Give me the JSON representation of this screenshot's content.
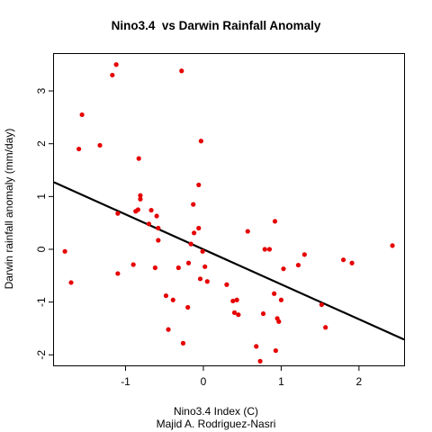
{
  "chart_data": {
    "type": "scatter",
    "title": "Nino3.4  vs Darwin Rainfall Anomaly",
    "xlabel": "Nino3.4 Index (C)",
    "ylabel": "Darwin rainfall anomaly (mm/day)",
    "credit": "Majid A. Rodriguez-Nasri",
    "xlim": [
      -1.92,
      2.58
    ],
    "ylim": [
      -2.2,
      3.7
    ],
    "xticks": [
      -1,
      0,
      1,
      2
    ],
    "yticks": [
      -2,
      -1,
      0,
      1,
      2,
      3
    ],
    "point_color": "#e60000",
    "line_color": "#000000",
    "regression_line": {
      "x": [
        -1.92,
        2.58
      ],
      "y": [
        1.27,
        -1.71
      ]
    },
    "points": [
      {
        "x": -1.78,
        "y": -0.04
      },
      {
        "x": -1.7,
        "y": -0.63
      },
      {
        "x": -1.6,
        "y": 1.9
      },
      {
        "x": -1.56,
        "y": 2.55
      },
      {
        "x": -1.33,
        "y": 1.97
      },
      {
        "x": -1.17,
        "y": 3.3
      },
      {
        "x": -1.12,
        "y": 3.5
      },
      {
        "x": -1.1,
        "y": 0.68
      },
      {
        "x": -1.1,
        "y": -0.46
      },
      {
        "x": -0.9,
        "y": -0.29
      },
      {
        "x": -0.87,
        "y": 0.72
      },
      {
        "x": -0.84,
        "y": 0.75
      },
      {
        "x": -0.83,
        "y": 1.72
      },
      {
        "x": -0.81,
        "y": 1.02
      },
      {
        "x": -0.81,
        "y": 0.95
      },
      {
        "x": -0.7,
        "y": 0.48
      },
      {
        "x": -0.67,
        "y": 0.74
      },
      {
        "x": -0.62,
        "y": -0.35
      },
      {
        "x": -0.6,
        "y": 0.63
      },
      {
        "x": -0.58,
        "y": 0.4
      },
      {
        "x": -0.58,
        "y": 0.17
      },
      {
        "x": -0.48,
        "y": -0.88
      },
      {
        "x": -0.45,
        "y": -1.52
      },
      {
        "x": -0.39,
        "y": -0.96
      },
      {
        "x": -0.32,
        "y": -0.35
      },
      {
        "x": -0.28,
        "y": 3.38
      },
      {
        "x": -0.26,
        "y": -1.78
      },
      {
        "x": -0.2,
        "y": -1.1
      },
      {
        "x": -0.19,
        "y": -0.26
      },
      {
        "x": -0.16,
        "y": 0.1
      },
      {
        "x": -0.13,
        "y": 0.85
      },
      {
        "x": -0.12,
        "y": 0.31
      },
      {
        "x": -0.06,
        "y": 1.22
      },
      {
        "x": -0.06,
        "y": 0.4
      },
      {
        "x": -0.04,
        "y": -0.56
      },
      {
        "x": -0.03,
        "y": 2.05
      },
      {
        "x": -0.01,
        "y": -0.04
      },
      {
        "x": 0.02,
        "y": -0.33
      },
      {
        "x": 0.05,
        "y": -0.61
      },
      {
        "x": 0.3,
        "y": -0.67
      },
      {
        "x": 0.38,
        "y": -0.98
      },
      {
        "x": 0.4,
        "y": -1.2
      },
      {
        "x": 0.43,
        "y": -0.96
      },
      {
        "x": 0.45,
        "y": -1.24
      },
      {
        "x": 0.57,
        "y": 0.34
      },
      {
        "x": 0.68,
        "y": -1.84
      },
      {
        "x": 0.73,
        "y": -2.12
      },
      {
        "x": 0.77,
        "y": -1.22
      },
      {
        "x": 0.79,
        "y": 0.0
      },
      {
        "x": 0.85,
        "y": 0.0
      },
      {
        "x": 0.91,
        "y": -0.84
      },
      {
        "x": 0.92,
        "y": 0.53
      },
      {
        "x": 0.93,
        "y": -1.92
      },
      {
        "x": 0.95,
        "y": -1.31
      },
      {
        "x": 0.97,
        "y": -1.37
      },
      {
        "x": 1.0,
        "y": -0.96
      },
      {
        "x": 1.03,
        "y": -0.37
      },
      {
        "x": 1.22,
        "y": -0.3
      },
      {
        "x": 1.3,
        "y": -0.1
      },
      {
        "x": 1.52,
        "y": -1.05
      },
      {
        "x": 1.57,
        "y": -1.48
      },
      {
        "x": 1.8,
        "y": -0.2
      },
      {
        "x": 1.91,
        "y": -0.26
      },
      {
        "x": 2.43,
        "y": 0.07
      }
    ]
  }
}
